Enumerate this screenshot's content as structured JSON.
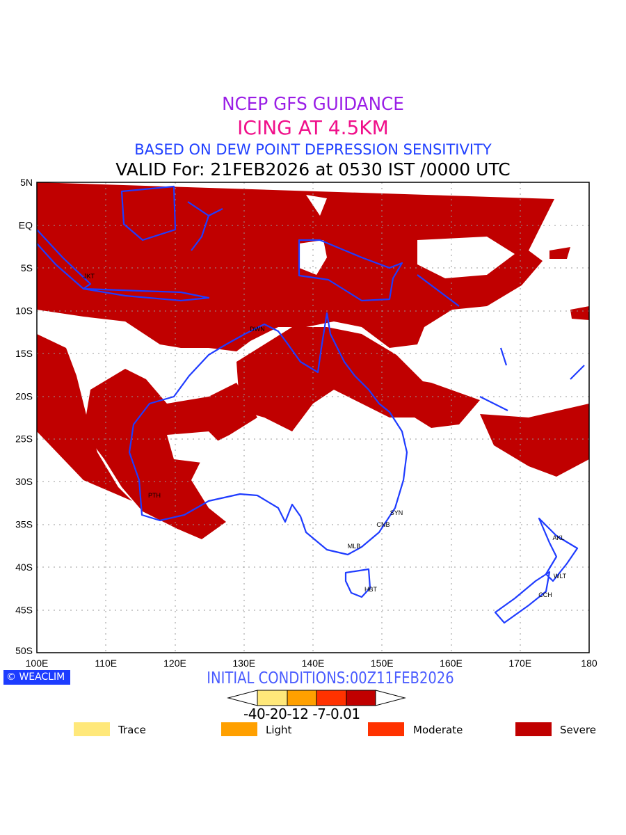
{
  "title": {
    "line1": "NCEP GFS GUIDANCE",
    "line2": "ICING AT 4.5KM",
    "line3": "BASED ON DEW POINT DEPRESSION SENSITIVITY",
    "line4": "VALID For: 21FEB2026 at 0530 IST /0000 UTC"
  },
  "map": {
    "lat_labels": [
      "5N",
      "EQ",
      "5S",
      "10S",
      "15S",
      "20S",
      "25S",
      "30S",
      "35S",
      "40S",
      "45S",
      "50S"
    ],
    "lon_labels": [
      "100E",
      "110E",
      "120E",
      "130E",
      "140E",
      "150E",
      "160E",
      "170E",
      "180"
    ],
    "cities": [
      "JKT",
      "DWN",
      "PTH",
      "SYN",
      "CNB",
      "MLB",
      "HBT",
      "AKL",
      "WLT",
      "CCH"
    ],
    "colors": {
      "coast": "#1f3cff",
      "severe": "#c00000"
    }
  },
  "logo": "WEACLIM",
  "initial_conditions": "INITIAL CONDITIONS:00Z11FEB2026",
  "colorbar": {
    "labels": "-40-20-12 -7-0.01",
    "colors": [
      "#ffe87a",
      "#ffa000",
      "#ff3200",
      "#c00000"
    ]
  },
  "legend": [
    {
      "label": "Trace",
      "color": "#ffe87a"
    },
    {
      "label": "Light",
      "color": "#ffa000"
    },
    {
      "label": "Moderate",
      "color": "#ff3200"
    },
    {
      "label": "Severe",
      "color": "#c00000"
    }
  ]
}
